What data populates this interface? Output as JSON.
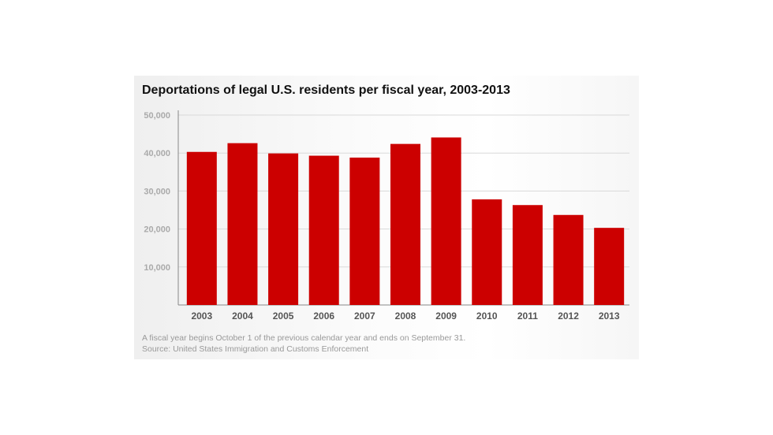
{
  "colors": {
    "bar": "#cc0000",
    "grid": "#d9d9d9",
    "axis": "#888888",
    "tick_label": "#aaaaaa",
    "category_label": "#555555"
  },
  "chart_data": {
    "type": "bar",
    "title": "Deportations of legal U.S. residents per fiscal year, 2003-2013",
    "xlabel": "",
    "ylabel": "",
    "categories": [
      "2003",
      "2004",
      "2005",
      "2006",
      "2007",
      "2008",
      "2009",
      "2010",
      "2011",
      "2012",
      "2013"
    ],
    "values": [
      40300,
      42600,
      39900,
      39300,
      38800,
      42400,
      44100,
      27800,
      26300,
      23700,
      20300
    ],
    "ylim": [
      0,
      50000
    ],
    "yticks": [
      10000,
      20000,
      30000,
      40000,
      50000
    ],
    "ytick_labels": [
      "10,000",
      "20,000",
      "30,000",
      "40,000",
      "50,000"
    ],
    "grid": true,
    "legend": "none"
  },
  "footnotes": {
    "note": "A fiscal year begins October 1 of the previous calendar year and ends on September 31.",
    "source": "Source: United States Immigration and Customs Enforcement"
  }
}
